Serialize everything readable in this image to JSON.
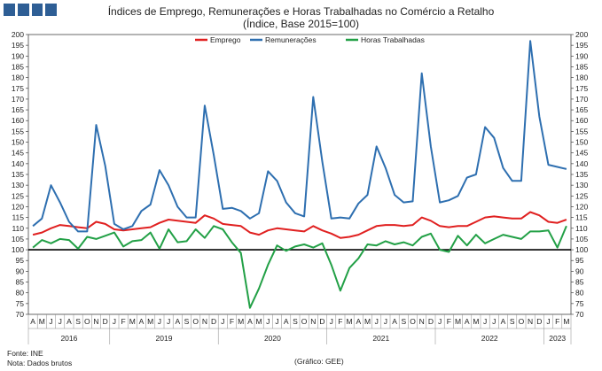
{
  "title_line1": "Índices de Emprego, Remunerações e Horas Trabalhadas no Comércio a Retalho",
  "title_line2": "(Índice, Base 2015=100)",
  "footer": {
    "source": "Fonte: INE",
    "note": "Nota: Dados brutos",
    "credit": "(Gráfico: GEE)"
  },
  "chart_data": {
    "type": "line",
    "ylim": [
      70,
      200
    ],
    "yticks": [
      70,
      75,
      80,
      85,
      90,
      95,
      100,
      105,
      110,
      115,
      120,
      125,
      130,
      135,
      140,
      145,
      150,
      155,
      160,
      165,
      170,
      175,
      180,
      185,
      190,
      195,
      200
    ],
    "reference_line": 100,
    "grid": false,
    "legend_position": "top",
    "x": [
      "A",
      "M",
      "J",
      "J",
      "A",
      "S",
      "O",
      "N",
      "D",
      "J",
      "F",
      "M",
      "A",
      "M",
      "J",
      "J",
      "A",
      "S",
      "O",
      "N",
      "D",
      "J",
      "F",
      "M",
      "A",
      "M",
      "J",
      "J",
      "A",
      "S",
      "O",
      "N",
      "D",
      "J",
      "F",
      "M",
      "A",
      "M",
      "J",
      "J",
      "A",
      "S",
      "O",
      "N",
      "D",
      "J",
      "F",
      "M",
      "A",
      "M",
      "J",
      "J",
      "A",
      "S",
      "O",
      "N",
      "D",
      "J",
      "F",
      "M"
    ],
    "year_labels": [
      {
        "label": "2016",
        "start": 0,
        "end": 8
      },
      {
        "label": "2019",
        "start": 9,
        "end": 20
      },
      {
        "label": "2020",
        "start": 21,
        "end": 32
      },
      {
        "label": "2021",
        "start": 33,
        "end": 44
      },
      {
        "label": "2022",
        "start": 45,
        "end": 56
      },
      {
        "label": "2023",
        "start": 57,
        "end": 59
      }
    ],
    "series": [
      {
        "name": "Emprego",
        "color": "#e02020",
        "values": [
          107,
          108,
          110,
          111.5,
          111,
          110.5,
          110,
          113,
          112,
          109.5,
          109,
          109.5,
          110,
          110.5,
          112.5,
          114,
          113.5,
          113,
          112.5,
          116,
          114.5,
          112,
          111.5,
          111,
          108,
          107,
          109,
          110,
          109.5,
          109,
          108.5,
          111,
          109,
          107.5,
          105.5,
          106,
          107,
          109,
          111,
          111.5,
          111.5,
          111,
          111.5,
          115,
          113.5,
          111,
          110.5,
          111,
          111,
          113,
          115,
          115.5,
          115,
          114.5,
          114.5,
          117.5,
          116,
          113,
          112.5,
          114
        ]
      },
      {
        "name": "Remunerações",
        "color": "#2e6fb0",
        "values": [
          111,
          114.5,
          130,
          122,
          113,
          108.5,
          108.5,
          158,
          139,
          112,
          109.5,
          111,
          118,
          121,
          137,
          130,
          120,
          115,
          115,
          167,
          144,
          119,
          119.5,
          118,
          114.5,
          117,
          136.5,
          132,
          122,
          117,
          115.5,
          171,
          141,
          114.5,
          115,
          114.5,
          121.5,
          125.5,
          148,
          138,
          125.5,
          122,
          122.5,
          182,
          148,
          122,
          123,
          125,
          133.5,
          135,
          157,
          152,
          138,
          132,
          132,
          197,
          162,
          139.5,
          138.5,
          137.5
        ]
      },
      {
        "name": "Horas Trabalhadas",
        "color": "#22a046",
        "values": [
          101,
          104.5,
          103,
          105,
          104.5,
          100.5,
          106,
          105,
          106.5,
          108,
          101.5,
          104,
          104.5,
          108,
          100.5,
          109.5,
          103.5,
          104,
          109.5,
          105.5,
          111,
          109.5,
          103.5,
          98.5,
          73,
          82,
          93,
          102,
          99.5,
          101.5,
          102.5,
          101,
          103,
          93,
          81,
          91.5,
          96,
          102.5,
          102,
          104,
          102.5,
          103.5,
          102,
          106,
          107.5,
          100,
          99,
          106.5,
          102,
          107,
          103,
          105,
          107,
          106,
          105,
          108.5,
          108.5,
          109,
          101,
          111
        ]
      }
    ]
  }
}
